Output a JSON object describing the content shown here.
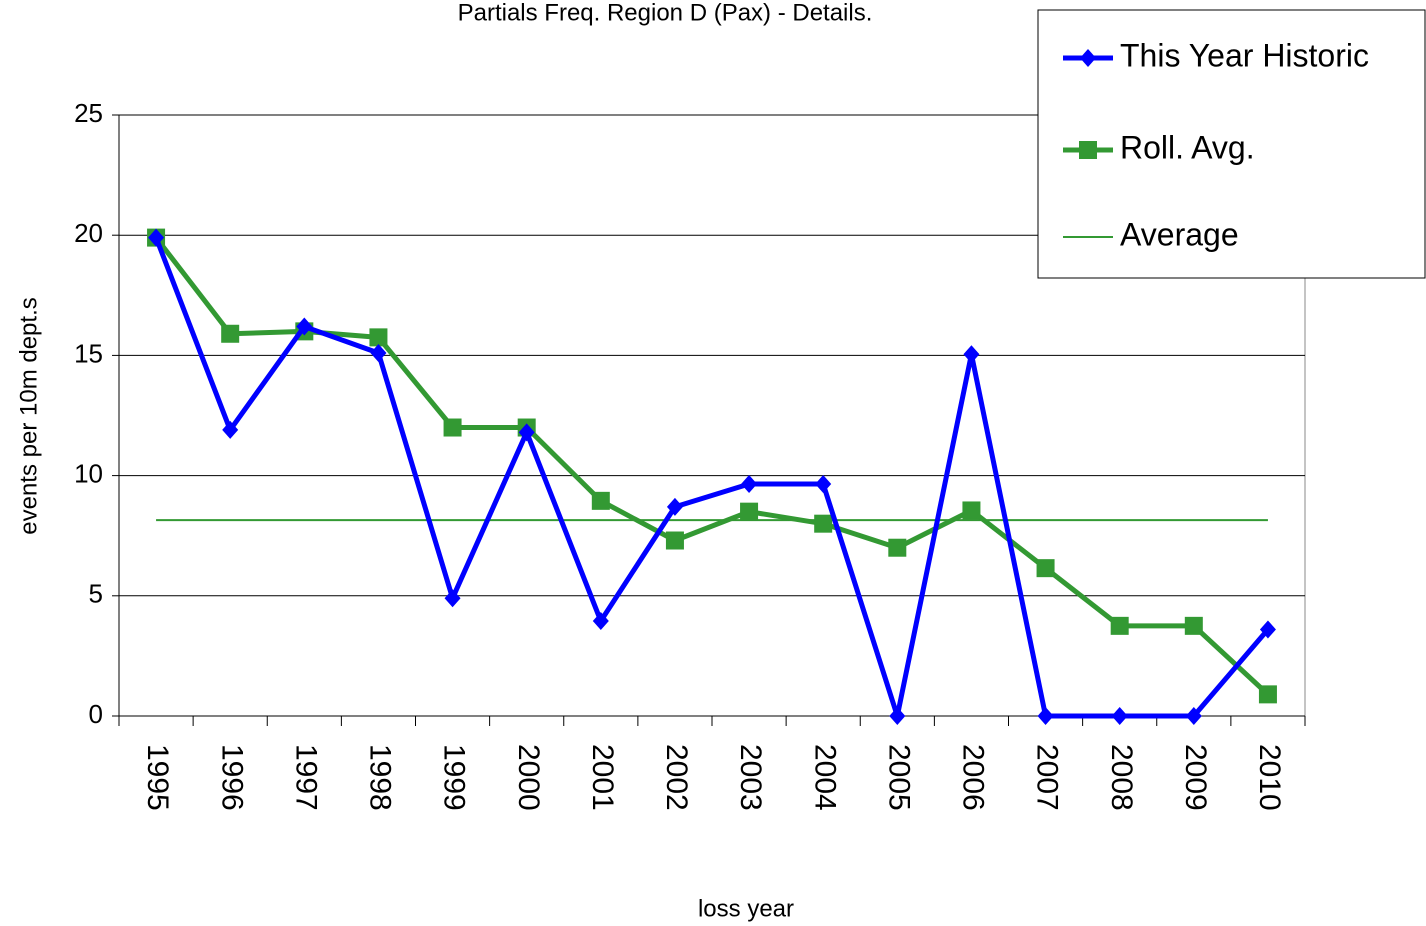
{
  "chart_data": {
    "type": "line",
    "title": "Partials Freq. Region D (Pax) - Details.",
    "x_label": "loss year",
    "y_label": "events per 10m dept.s",
    "categories": [
      "1995",
      "1996",
      "1997",
      "1998",
      "1999",
      "2000",
      "2001",
      "2002",
      "2003",
      "2004",
      "2005",
      "2006",
      "2007",
      "2008",
      "2009",
      "2010"
    ],
    "series": [
      {
        "name": "This Year Historic",
        "color": "#0000ff",
        "marker": "diamond",
        "values": [
          19.9,
          11.9,
          16.2,
          15.1,
          4.9,
          11.8,
          3.95,
          8.7,
          9.65,
          9.65,
          0,
          15.05,
          0,
          0,
          0,
          3.6
        ]
      },
      {
        "name": "Roll. Avg.",
        "color": "#339933",
        "marker": "square",
        "values": [
          19.9,
          15.9,
          16.0,
          15.75,
          12.0,
          12.0,
          8.95,
          7.3,
          8.5,
          8.0,
          7.0,
          8.55,
          6.15,
          3.75,
          3.75,
          0.9
        ]
      },
      {
        "name": "Average",
        "color": "#339933",
        "values": [
          8.15,
          8.15,
          8.15,
          8.15,
          8.15,
          8.15,
          8.15,
          8.15,
          8.15,
          8.15,
          8.15,
          8.15,
          8.15,
          8.15,
          8.15,
          8.15
        ]
      }
    ],
    "ylim": [
      0,
      25
    ],
    "yticks": [
      0,
      5,
      10,
      15,
      20,
      25
    ],
    "grid": true,
    "legend": "top-right"
  }
}
